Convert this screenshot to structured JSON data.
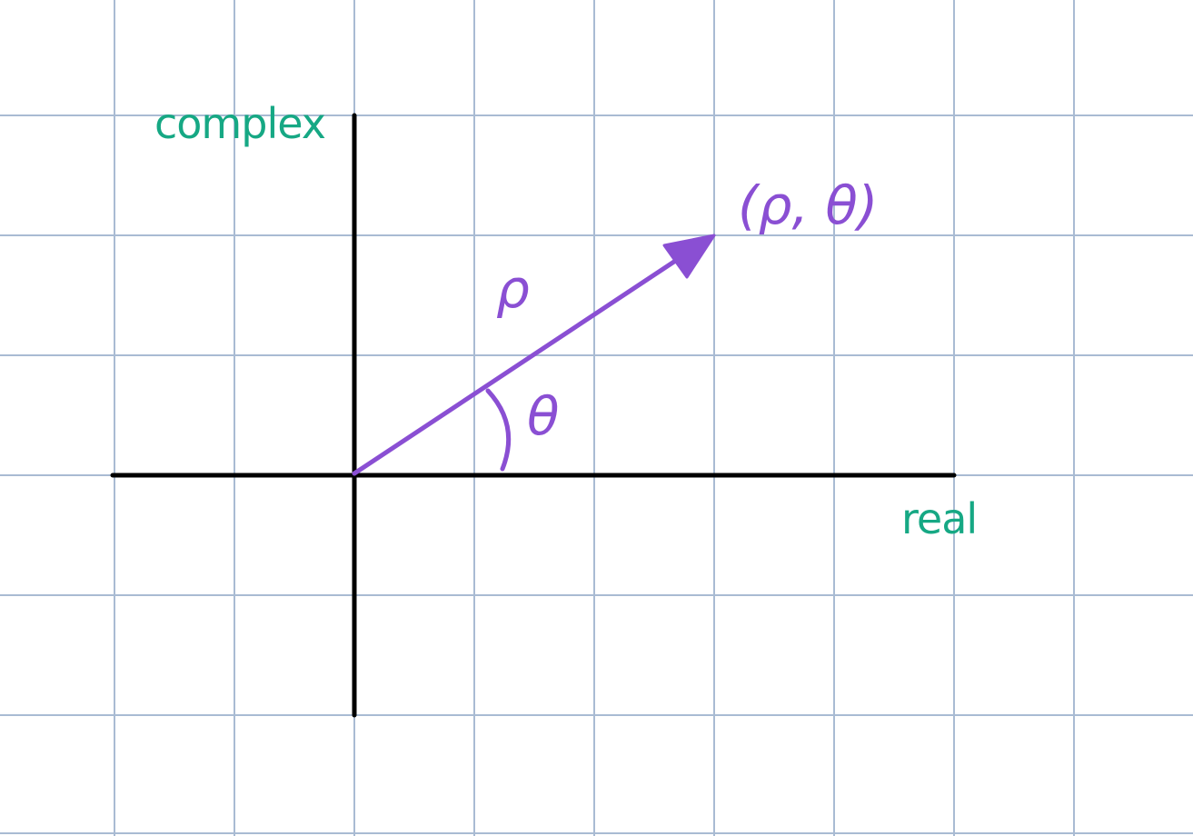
{
  "colors": {
    "background": "#ffffff",
    "grid": "#a9bbd3",
    "axes": "#000000",
    "vector": "#8a4fd3",
    "axis_labels": "#16a884"
  },
  "diagram": {
    "vertical_axis_label": "complex",
    "horizontal_axis_label": "real",
    "magnitude_label": "ρ",
    "angle_label": "θ",
    "point_label": "(ρ, θ)"
  }
}
